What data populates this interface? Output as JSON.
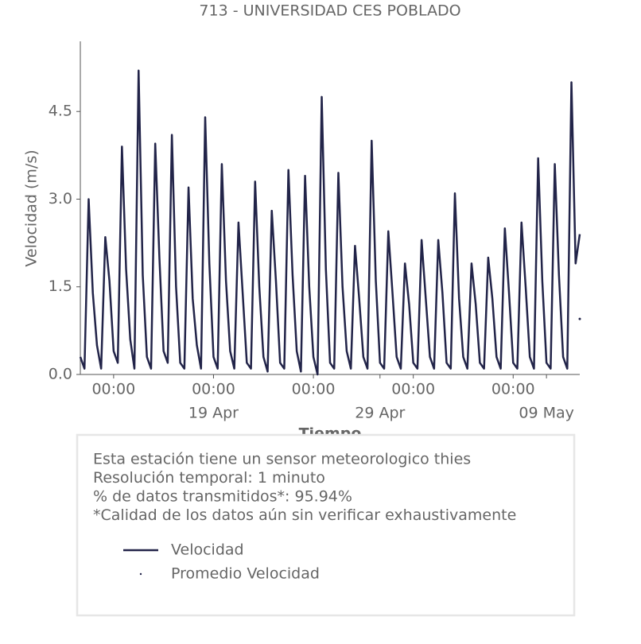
{
  "chart_data": {
    "type": "line",
    "title": "713 - UNIVERSIDAD CES POBLADO",
    "xlabel": "Tiempo",
    "ylabel": "Velocidad (m/s)",
    "xlim": [
      "11 Apr 00:00",
      "11 May 00:00"
    ],
    "ylim": [
      0,
      5.7
    ],
    "yticks": [
      0.0,
      1.5,
      3.0,
      4.5
    ],
    "xticks": [
      {
        "value": "13 Apr 00:00",
        "label": "00:00"
      },
      {
        "value": "19 Apr 00:00",
        "label": "00:00"
      },
      {
        "value": "25 Apr 00:00",
        "label": "00:00"
      },
      {
        "value": "01 May 00:00",
        "label": "00:00"
      },
      {
        "value": "07 May 00:00",
        "label": "00:00"
      }
    ],
    "xdates": [
      {
        "value": "19 Apr 00:00",
        "label": "19 Apr"
      },
      {
        "value": "29 Apr 00:00",
        "label": "29 Apr"
      },
      {
        "value": "09 May 00:00",
        "label": "09 May"
      }
    ],
    "series": [
      {
        "name": "Velocidad",
        "color": "#222449",
        "marker": "line",
        "x": [
          "11 Apr 00:00",
          "11 Apr 06:00",
          "11 Apr 12:00",
          "11 Apr 18:00",
          "12 Apr 00:00",
          "12 Apr 06:00",
          "12 Apr 12:00",
          "12 Apr 18:00",
          "13 Apr 00:00",
          "13 Apr 06:00",
          "13 Apr 12:00",
          "13 Apr 18:00",
          "14 Apr 00:00",
          "14 Apr 06:00",
          "14 Apr 12:00",
          "14 Apr 18:00",
          "15 Apr 00:00",
          "15 Apr 06:00",
          "15 Apr 12:00",
          "15 Apr 18:00",
          "16 Apr 00:00",
          "16 Apr 06:00",
          "16 Apr 12:00",
          "16 Apr 18:00",
          "17 Apr 00:00",
          "17 Apr 06:00",
          "17 Apr 12:00",
          "17 Apr 18:00",
          "18 Apr 00:00",
          "18 Apr 06:00",
          "18 Apr 12:00",
          "18 Apr 18:00",
          "19 Apr 00:00",
          "19 Apr 06:00",
          "19 Apr 12:00",
          "19 Apr 18:00",
          "20 Apr 00:00",
          "20 Apr 06:00",
          "20 Apr 12:00",
          "20 Apr 18:00",
          "21 Apr 00:00",
          "21 Apr 06:00",
          "21 Apr 12:00",
          "21 Apr 18:00",
          "22 Apr 00:00",
          "22 Apr 06:00",
          "22 Apr 12:00",
          "22 Apr 18:00",
          "23 Apr 00:00",
          "23 Apr 06:00",
          "23 Apr 12:00",
          "23 Apr 18:00",
          "24 Apr 00:00",
          "24 Apr 06:00",
          "24 Apr 12:00",
          "24 Apr 18:00",
          "25 Apr 00:00",
          "25 Apr 06:00",
          "25 Apr 12:00",
          "25 Apr 18:00",
          "26 Apr 00:00",
          "26 Apr 06:00",
          "26 Apr 12:00",
          "26 Apr 18:00",
          "27 Apr 00:00",
          "27 Apr 06:00",
          "27 Apr 12:00",
          "27 Apr 18:00",
          "28 Apr 00:00",
          "28 Apr 06:00",
          "28 Apr 12:00",
          "28 Apr 18:00",
          "29 Apr 00:00",
          "29 Apr 06:00",
          "29 Apr 12:00",
          "29 Apr 18:00",
          "30 Apr 00:00",
          "30 Apr 06:00",
          "30 Apr 12:00",
          "30 Apr 18:00",
          "01 May 00:00",
          "01 May 06:00",
          "01 May 12:00",
          "01 May 18:00",
          "02 May 00:00",
          "02 May 06:00",
          "02 May 12:00",
          "02 May 18:00",
          "03 May 00:00",
          "03 May 06:00",
          "03 May 12:00",
          "03 May 18:00",
          "04 May 00:00",
          "04 May 06:00",
          "04 May 12:00",
          "04 May 18:00",
          "05 May 00:00",
          "05 May 06:00",
          "05 May 12:00",
          "05 May 18:00",
          "06 May 00:00",
          "06 May 06:00",
          "06 May 12:00",
          "06 May 18:00",
          "07 May 00:00",
          "07 May 06:00",
          "07 May 12:00",
          "07 May 18:00",
          "08 May 00:00",
          "08 May 06:00",
          "08 May 12:00",
          "08 May 18:00",
          "09 May 00:00",
          "09 May 06:00",
          "09 May 12:00",
          "09 May 18:00",
          "10 May 00:00",
          "10 May 06:00",
          "10 May 12:00",
          "10 May 18:00",
          "11 May 00:00"
        ],
        "values": [
          0.3,
          0.1,
          3.0,
          1.4,
          0.5,
          0.1,
          2.35,
          1.6,
          0.4,
          0.2,
          3.9,
          1.8,
          0.6,
          0.1,
          5.2,
          1.7,
          0.3,
          0.1,
          3.95,
          2.0,
          0.4,
          0.2,
          4.1,
          1.5,
          0.2,
          0.1,
          3.2,
          1.3,
          0.5,
          0.1,
          4.4,
          1.9,
          0.3,
          0.1,
          3.6,
          1.6,
          0.4,
          0.1,
          2.6,
          1.4,
          0.2,
          0.1,
          3.3,
          1.5,
          0.3,
          0.05,
          2.8,
          1.6,
          0.2,
          0.1,
          3.5,
          1.7,
          0.4,
          0.05,
          3.4,
          1.5,
          0.3,
          0.0,
          4.75,
          1.8,
          0.2,
          0.1,
          3.45,
          1.5,
          0.4,
          0.1,
          2.2,
          1.3,
          0.3,
          0.1,
          4.0,
          1.6,
          0.2,
          0.1,
          2.45,
          1.4,
          0.3,
          0.1,
          1.9,
          1.2,
          0.2,
          0.1,
          2.3,
          1.3,
          0.3,
          0.1,
          2.3,
          1.4,
          0.2,
          0.1,
          3.1,
          1.3,
          0.3,
          0.1,
          1.9,
          1.2,
          0.2,
          0.1,
          2.0,
          1.3,
          0.3,
          0.1,
          2.5,
          1.4,
          0.2,
          0.1,
          2.6,
          1.5,
          0.3,
          0.1,
          3.7,
          1.6,
          0.2,
          0.1,
          3.6,
          1.7,
          0.3,
          0.1,
          5.0,
          1.9,
          2.4
        ]
      },
      {
        "name": "Promedio Velocidad",
        "color": "#222449",
        "marker": "dot",
        "x": [
          "11 May 00:00"
        ],
        "values": [
          0.95
        ]
      }
    ],
    "notes": [
      "Esta estación tiene un sensor meteorologico thies",
      "Resolución temporal: 1 minuto",
      "% de datos transmitidos*: 95.94%",
      "*Calidad de los datos aún sin verificar exhaustivamente"
    ]
  }
}
